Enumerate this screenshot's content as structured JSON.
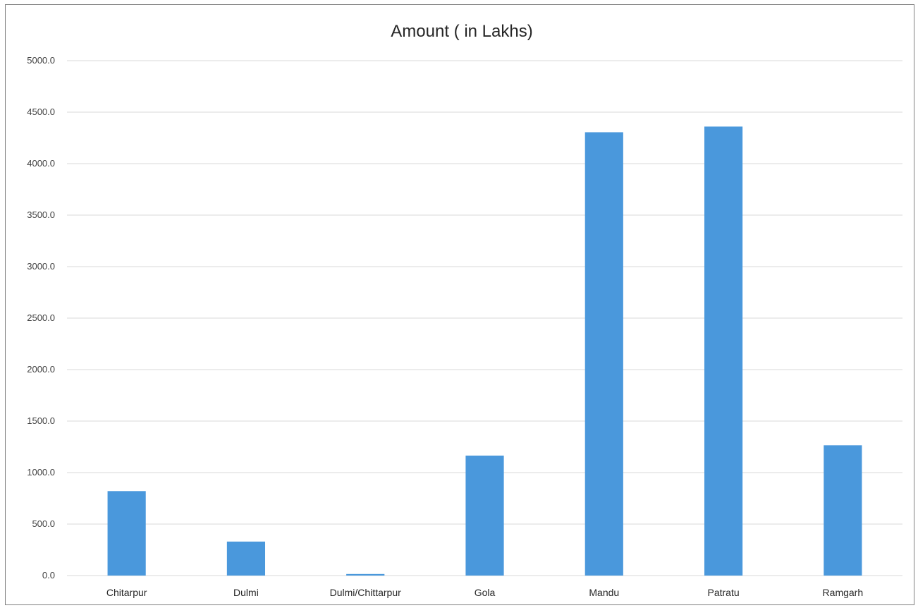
{
  "chart_data": {
    "type": "bar",
    "title": "Amount ( in Lakhs)",
    "xlabel": "",
    "ylabel": "",
    "categories": [
      "Chitarpur",
      "Dulmi",
      "Dulmi/Chittarpur",
      "Gola",
      "Mandu",
      "Patratu",
      "Ramgarh"
    ],
    "values": [
      820,
      330,
      15,
      1165,
      4305,
      4360,
      1265
    ],
    "ylim": [
      0,
      5000
    ],
    "yticks": [
      "0.0",
      "500.0",
      "1000.0",
      "1500.0",
      "2000.0",
      "2500.0",
      "3000.0",
      "3500.0",
      "4000.0",
      "4500.0",
      "5000.0"
    ],
    "bar_color": "#4a98dc",
    "grid_color": "#d9d9d9",
    "grid": true,
    "legend": "none"
  }
}
